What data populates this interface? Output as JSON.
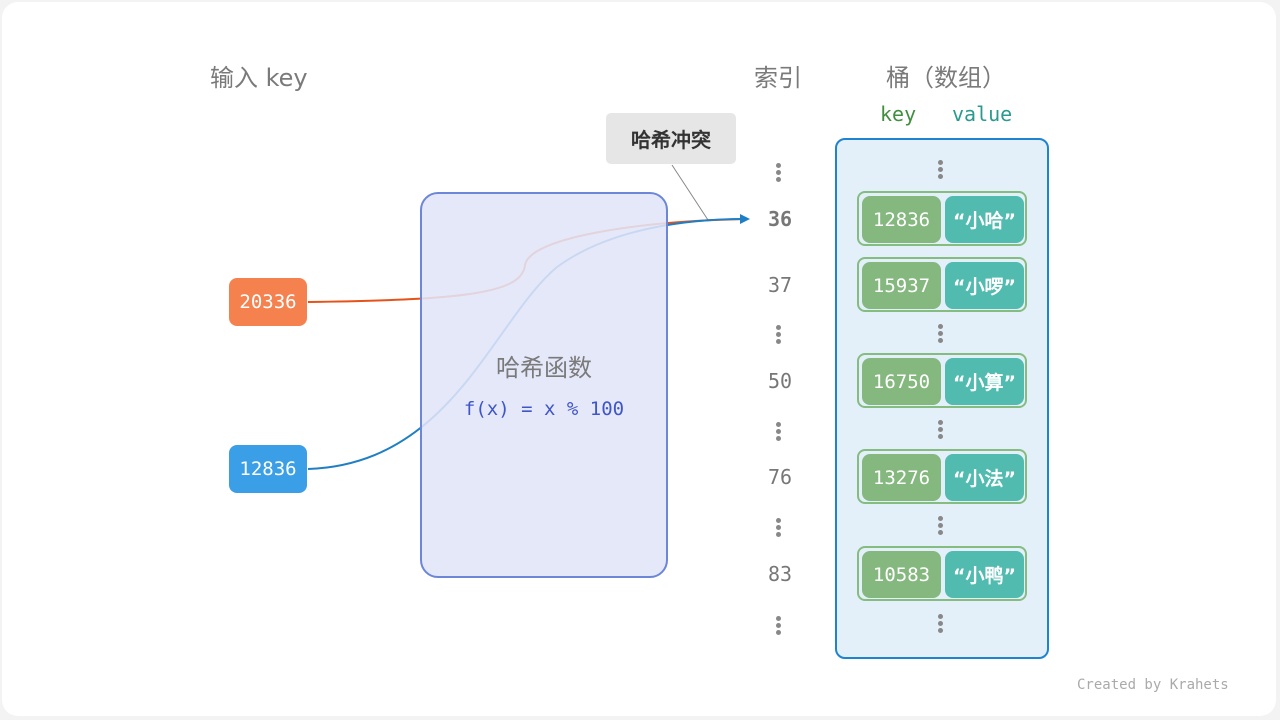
{
  "headers": {
    "input": "输入 key",
    "index": "索引",
    "bucket": "桶（数组）",
    "key": "key",
    "value": "value"
  },
  "collision_label": "哈希冲突",
  "hash_function": {
    "title": "哈希函数",
    "formula": "f(x) = x % 100"
  },
  "inputs": [
    {
      "key": "20336",
      "color": "#f5814f"
    },
    {
      "key": "12836",
      "color": "#3a9fe6"
    }
  ],
  "colors": {
    "orange_line": "#e5531a",
    "blue_line": "#1f7fc4",
    "bucket_border": "#1f84d0",
    "bucket_bg": "#e3f0fa",
    "key_cell": "#85b87f",
    "value_cell": "#52bbb0"
  },
  "indices": [
    "36",
    "37",
    "50",
    "76",
    "83"
  ],
  "entries": [
    {
      "key": "12836",
      "value": "“小哈”"
    },
    {
      "key": "15937",
      "value": "“小啰”"
    },
    {
      "key": "16750",
      "value": "“小算”"
    },
    {
      "key": "13276",
      "value": "“小法”"
    },
    {
      "key": "10583",
      "value": "“小鸭”"
    }
  ],
  "credit": "Created by Krahets"
}
